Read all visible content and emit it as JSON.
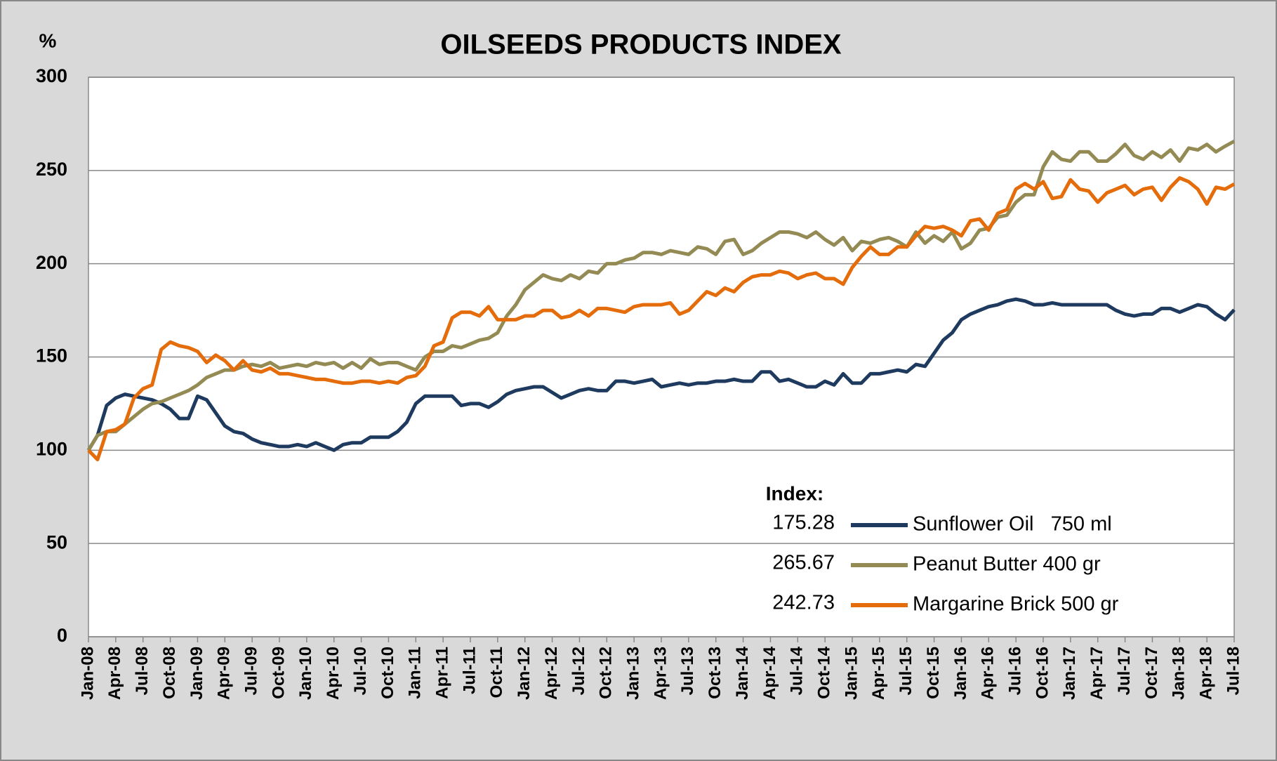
{
  "chart_data": {
    "type": "line",
    "title": "OILSEEDS PRODUCTS INDEX",
    "y_unit_label": "%",
    "legend_title": "Index:",
    "categories": [
      "Jan-08",
      null,
      null,
      "Apr-08",
      null,
      null,
      "Jul-08",
      null,
      null,
      "Oct-08",
      null,
      null,
      "Jan-09",
      null,
      null,
      "Apr-09",
      null,
      null,
      "Jul-09",
      null,
      null,
      "Oct-09",
      null,
      null,
      "Jan-10",
      null,
      null,
      "Apr-10",
      null,
      null,
      "Jul-10",
      null,
      null,
      "Oct-10",
      null,
      null,
      "Jan-11",
      null,
      null,
      "Apr-11",
      null,
      null,
      "Jul-11",
      null,
      null,
      "Oct-11",
      null,
      null,
      "Jan-12",
      null,
      null,
      "Apr-12",
      null,
      null,
      "Jul-12",
      null,
      null,
      "Oct-12",
      null,
      null,
      "Jan-13",
      null,
      null,
      "Apr-13",
      null,
      null,
      "Jul-13",
      null,
      null,
      "Oct-13",
      null,
      null,
      "Jan-14",
      null,
      null,
      "Apr-14",
      null,
      null,
      "Jul-14",
      null,
      null,
      "Oct-14",
      null,
      null,
      "Jan-15",
      null,
      null,
      "Apr-15",
      null,
      null,
      "Jul-15",
      null,
      null,
      "Oct-15",
      null,
      null,
      "Jan-16",
      null,
      null,
      "Apr-16",
      null,
      null,
      "Jul-16",
      null,
      null,
      "Oct-16",
      null,
      null,
      "Jan-17",
      null,
      null,
      "Apr-17",
      null,
      null,
      "Jul-17",
      null,
      null,
      "Oct-17",
      null,
      null,
      "Jan-18",
      null,
      null,
      "Apr-18",
      null,
      null,
      "Jul-18"
    ],
    "series": [
      {
        "name": "Sunflower Oil   750 ml",
        "index": 175.28,
        "color": "#1f3a5f",
        "values": [
          100,
          108,
          124,
          128,
          130,
          129,
          128,
          127,
          125,
          122,
          117,
          117,
          129,
          127,
          120,
          113,
          110,
          109,
          106,
          104,
          103,
          102,
          102,
          103,
          102,
          104,
          102,
          100,
          103,
          104,
          104,
          107,
          107,
          107,
          110,
          115,
          125,
          129,
          129,
          129,
          129,
          124,
          125,
          125,
          123,
          126,
          130,
          132,
          133,
          134,
          134,
          131,
          128,
          130,
          132,
          133,
          132,
          132,
          137,
          137,
          136,
          137,
          138,
          134,
          135,
          136,
          135,
          136,
          136,
          137,
          137,
          138,
          137,
          137,
          142,
          142,
          137,
          138,
          136,
          134,
          134,
          137,
          135,
          141,
          136,
          136,
          141,
          141,
          142,
          143,
          142,
          146,
          145,
          152,
          159,
          163,
          170,
          173,
          175,
          177,
          178,
          180,
          181,
          180,
          178,
          178,
          179,
          178,
          178,
          178,
          178,
          178,
          178,
          175,
          173,
          172,
          173,
          173,
          176,
          176,
          174,
          176,
          178,
          177,
          173,
          170,
          175.28
        ]
      },
      {
        "name": "Peanut Butter 400 gr",
        "index": 265.67,
        "color": "#948a54",
        "values": [
          100,
          108,
          110,
          110,
          114,
          118,
          122,
          125,
          126,
          128,
          130,
          132,
          135,
          139,
          141,
          143,
          143,
          145,
          146,
          145,
          147,
          144,
          145,
          146,
          145,
          147,
          146,
          147,
          144,
          147,
          144,
          149,
          146,
          147,
          147,
          145,
          143,
          150,
          153,
          153,
          156,
          155,
          157,
          159,
          160,
          163,
          172,
          178,
          186,
          190,
          194,
          192,
          191,
          194,
          192,
          196,
          195,
          200,
          200,
          202,
          203,
          206,
          206,
          205,
          207,
          206,
          205,
          209,
          208,
          205,
          212,
          213,
          205,
          207,
          211,
          214,
          217,
          217,
          216,
          214,
          217,
          213,
          210,
          214,
          207,
          212,
          211,
          213,
          214,
          212,
          209,
          217,
          211,
          215,
          212,
          217,
          208,
          211,
          218,
          219,
          225,
          226,
          233,
          237,
          237,
          252,
          260,
          256,
          255,
          260,
          260,
          255,
          255,
          259,
          264,
          258,
          256,
          260,
          257,
          261,
          255,
          262,
          261,
          264,
          260,
          263,
          265.67
        ]
      },
      {
        "name": "Margarine Brick 500 gr",
        "index": 242.73,
        "color": "#e46c0a",
        "values": [
          100,
          95,
          110,
          111,
          114,
          128,
          133,
          135,
          154,
          158,
          156,
          155,
          153,
          147,
          151,
          148,
          143,
          148,
          143,
          142,
          144,
          141,
          141,
          140,
          139,
          138,
          138,
          137,
          136,
          136,
          137,
          137,
          136,
          137,
          136,
          139,
          140,
          145,
          156,
          158,
          171,
          174,
          174,
          172,
          177,
          170,
          170,
          170,
          172,
          172,
          175,
          175,
          171,
          172,
          175,
          172,
          176,
          176,
          175,
          174,
          177,
          178,
          178,
          178,
          179,
          173,
          175,
          180,
          185,
          183,
          187,
          185,
          190,
          193,
          194,
          194,
          196,
          195,
          192,
          194,
          195,
          192,
          192,
          189,
          198,
          204,
          209,
          205,
          205,
          209,
          209,
          215,
          220,
          219,
          220,
          218,
          215,
          223,
          224,
          218,
          227,
          229,
          240,
          243,
          240,
          244,
          235,
          236,
          245,
          240,
          239,
          233,
          238,
          240,
          242,
          237,
          240,
          241,
          234,
          241,
          246,
          244,
          240,
          232,
          241,
          240,
          242.73
        ]
      }
    ],
    "ylim": [
      0,
      300
    ],
    "yticks": [
      0,
      50,
      100,
      150,
      200,
      250,
      300
    ],
    "grid": true
  }
}
